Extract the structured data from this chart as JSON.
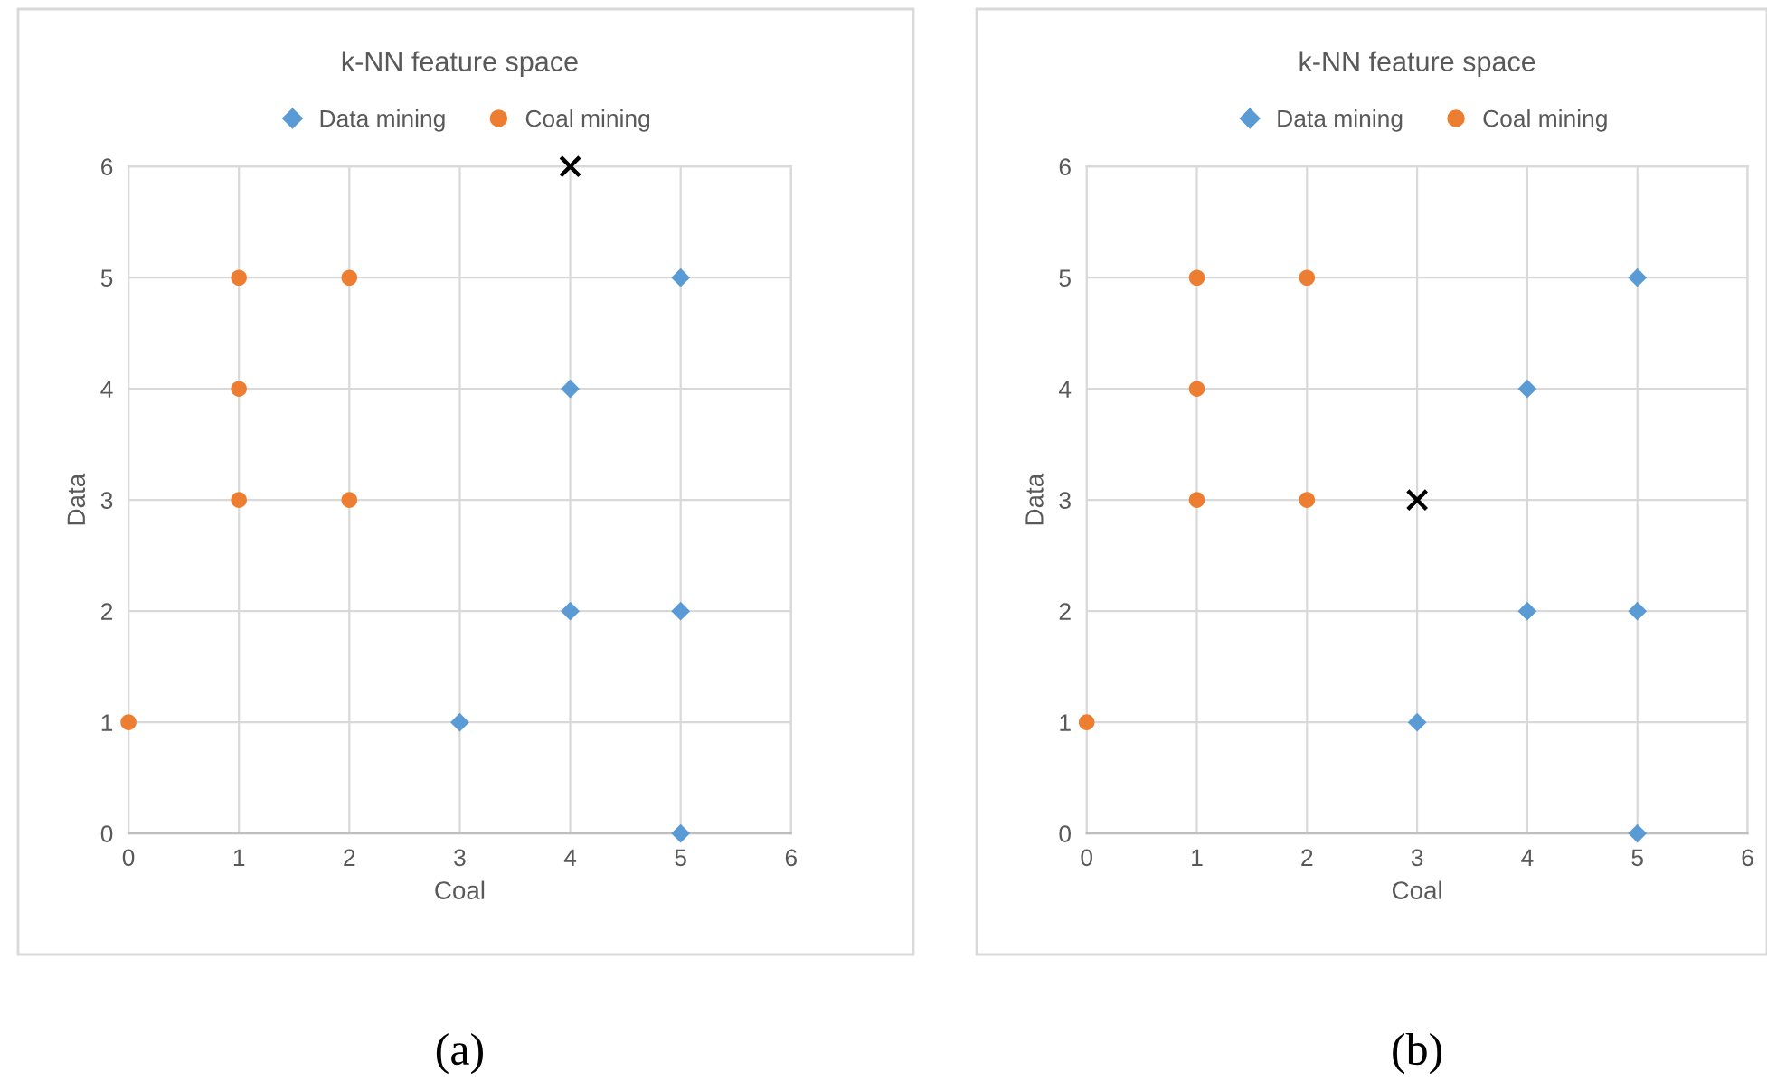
{
  "chart_data": [
    {
      "type": "scatter",
      "title": "k-NN feature space",
      "xlabel": "Coal",
      "ylabel": "Data",
      "xlim": [
        0,
        6
      ],
      "ylim": [
        0,
        6
      ],
      "xticks": [
        0,
        1,
        2,
        3,
        4,
        5,
        6
      ],
      "yticks": [
        0,
        1,
        2,
        3,
        4,
        5,
        6
      ],
      "grid": true,
      "legend": "top",
      "annotations": [
        "(a)"
      ],
      "series": [
        {
          "name": "Data mining",
          "color": "#5b9bd5",
          "marker": "diamond",
          "x": [
            3,
            4,
            4,
            5,
            5,
            5
          ],
          "values": [
            1,
            2,
            4,
            0,
            2,
            5
          ]
        },
        {
          "name": "Coal mining",
          "color": "#ed7d31",
          "marker": "circle",
          "x": [
            0,
            1,
            1,
            1,
            2,
            2
          ],
          "values": [
            1,
            3,
            4,
            5,
            3,
            5
          ]
        },
        {
          "color": "#000000",
          "marker": "cross",
          "x": [
            4
          ],
          "values": [
            6
          ]
        }
      ]
    },
    {
      "type": "scatter",
      "title": "k-NN feature space",
      "xlabel": "Coal",
      "ylabel": "Data",
      "xlim": [
        0,
        6
      ],
      "ylim": [
        0,
        6
      ],
      "xticks": [
        0,
        1,
        2,
        3,
        4,
        5,
        6
      ],
      "yticks": [
        0,
        1,
        2,
        3,
        4,
        5,
        6
      ],
      "grid": true,
      "legend": "top",
      "annotations": [
        "(b)"
      ],
      "series": [
        {
          "name": "Data mining",
          "color": "#5b9bd5",
          "marker": "diamond",
          "x": [
            3,
            4,
            4,
            5,
            5,
            5
          ],
          "values": [
            1,
            2,
            4,
            0,
            2,
            5
          ]
        },
        {
          "name": "Coal mining",
          "color": "#ed7d31",
          "marker": "circle",
          "x": [
            0,
            1,
            1,
            1,
            2,
            2
          ],
          "values": [
            1,
            3,
            4,
            5,
            3,
            5
          ]
        },
        {
          "color": "#000000",
          "marker": "cross",
          "x": [
            3
          ],
          "values": [
            3
          ]
        }
      ]
    }
  ]
}
